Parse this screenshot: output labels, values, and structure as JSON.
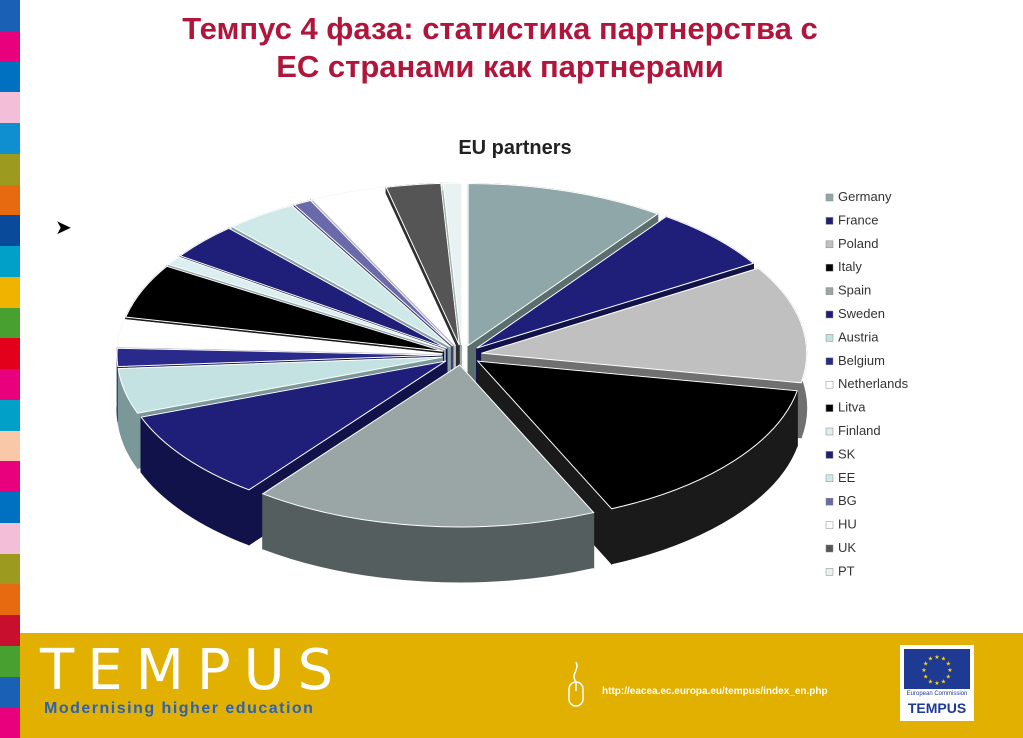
{
  "slide": {
    "title_line1": "Темпус 4 фаза: статистика партнерства с",
    "title_line2": "ЕС странами как партнерами",
    "bullet_icon": "arrow-bullet-icon"
  },
  "colors": {
    "title": "#b0153c",
    "footer": "#e2b000",
    "strip": [
      "#1a61b5",
      "#e8007c",
      "#0070c0",
      "#f3bfd8",
      "#0f8fcf",
      "#9c9a1f",
      "#e86a10",
      "#0a4a9a",
      "#00a0c8",
      "#f0b400",
      "#47a030",
      "#e2001a",
      "#e8007c",
      "#00a0c8",
      "#f8c8a8",
      "#e8007c",
      "#0070c0",
      "#f3bfd8",
      "#9c9a1f",
      "#e86a10",
      "#c8102e",
      "#47a030",
      "#1a61b5",
      "#e8007c"
    ]
  },
  "chart_data": {
    "type": "pie",
    "title": "EU partners",
    "legend_position": "right",
    "categories": [
      "Germany",
      "France",
      "Poland",
      "Italy",
      "Spain",
      "Sweden",
      "Austria",
      "Belgium",
      "Netherlands",
      "Litva",
      "Finland",
      "SK",
      "EE",
      "BG",
      "HU",
      "UK",
      "PT"
    ],
    "values": [
      11,
      7,
      13,
      17,
      19,
      10,
      5,
      2,
      3,
      6,
      1,
      4,
      4,
      1,
      4,
      3,
      1
    ],
    "series_colors": [
      "#8fa7a8",
      "#1f1f7a",
      "#c0c0c0",
      "#000000",
      "#9aa6a6",
      "#1f1f7a",
      "#c4e2e2",
      "#2a2a8c",
      "#ffffff",
      "#000000",
      "#dbeef0",
      "#1f1f7a",
      "#cfe8e8",
      "#6a6aaa",
      "#ffffff",
      "#555555",
      "#e8f2f2"
    ],
    "side_colors": [
      "#5a6e6e",
      "#12124a",
      "#707070",
      "#1a1a1a",
      "#555e5e",
      "#12124a",
      "#7a9898",
      "#161654",
      "#bbbbbb",
      "#1a1a1a",
      "#90a8a8",
      "#12124a",
      "#88a0a0",
      "#3e3e6e",
      "#bbbbbb",
      "#2e2e2e",
      "#a0b0b0"
    ]
  },
  "footer": {
    "brand": "TEMPUS",
    "tagline": "Modernising higher education",
    "url": "http://eacea.ec.europa.eu/tempus/index_en.php",
    "eu_caption": "European Commission",
    "eu_brand": "TEMPUS"
  }
}
